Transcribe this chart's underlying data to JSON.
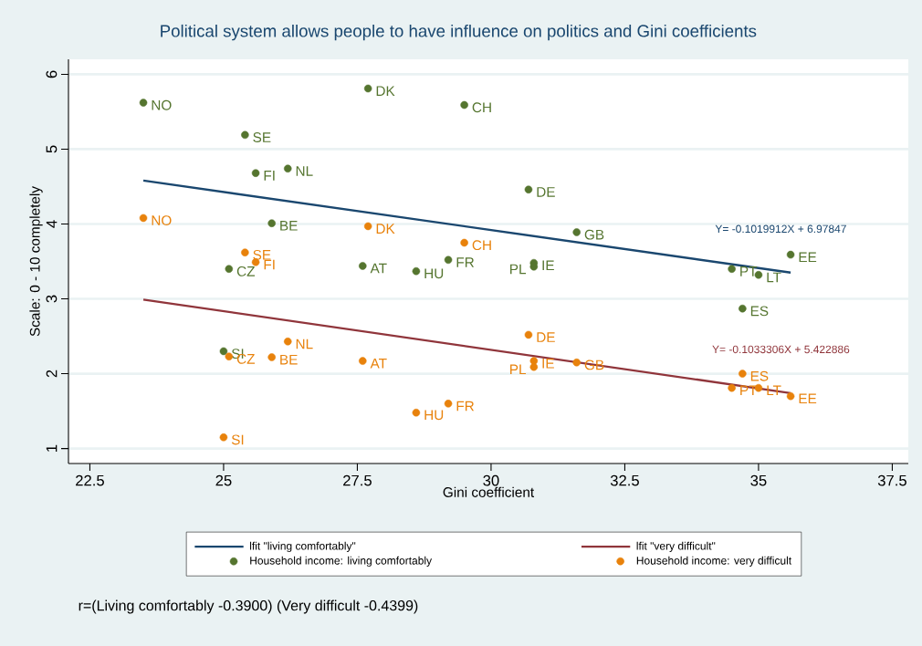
{
  "chart_data": {
    "type": "scatter",
    "title": "Political system allows people to have influence on politics and Gini coefficients",
    "xlabel": "Gini coefficient",
    "ylabel": "Scale: 0 - 10 completely",
    "xlim": [
      22.1,
      37.8
    ],
    "ylim": [
      0.8,
      6.2
    ],
    "xticks": [
      22.5,
      25,
      27.5,
      30,
      32.5,
      35,
      37.5
    ],
    "yticks": [
      1,
      2,
      3,
      4,
      5,
      6
    ],
    "grid": "y",
    "legend": "bottom",
    "series": [
      {
        "name": "lfit \"living comfortably\"",
        "type": "line",
        "marker": "none",
        "color": "#1a476f",
        "x": [
          23.5,
          35.6
        ],
        "values": [
          4.58,
          3.35
        ]
      },
      {
        "name": "lfit \"very difficult\"",
        "type": "line",
        "marker": "none",
        "color": "#90353b",
        "x": [
          23.5,
          35.6
        ],
        "values": [
          2.99,
          1.74
        ]
      },
      {
        "name": "Household income: living comfortably",
        "marker": "circle",
        "color": "#55752f",
        "x": [
          23.5,
          27.7,
          29.5,
          25.4,
          25.6,
          26.2,
          30.7,
          25.9,
          31.6,
          25.1,
          27.6,
          28.6,
          29.2,
          30.8,
          30.8,
          34.5,
          35.0,
          35.6,
          34.7,
          25.0
        ],
        "values": [
          5.62,
          5.81,
          5.59,
          5.19,
          4.68,
          4.74,
          4.46,
          4.01,
          3.89,
          3.4,
          3.44,
          3.37,
          3.52,
          3.48,
          3.43,
          3.4,
          3.32,
          3.59,
          2.87,
          2.3
        ],
        "value_labels": [
          "NO",
          "DK",
          "CH",
          "SE",
          "FI",
          "NL",
          "DE",
          "BE",
          "GB",
          "CZ",
          "AT",
          "HU",
          "FR",
          "IE",
          "PL",
          "PT",
          "LT",
          "EE",
          "ES",
          "SI"
        ]
      },
      {
        "name": "Household income: very difficult",
        "marker": "circle",
        "color": "#e8820c",
        "x": [
          23.5,
          27.7,
          25.4,
          25.6,
          29.5,
          30.7,
          30.8,
          30.8,
          31.6,
          26.2,
          25.1,
          25.9,
          27.6,
          28.6,
          29.2,
          25.0,
          34.7,
          34.5,
          35.0,
          35.6
        ],
        "values": [
          4.08,
          3.97,
          3.62,
          3.49,
          3.75,
          2.52,
          2.17,
          2.09,
          2.15,
          2.43,
          2.23,
          2.22,
          2.17,
          1.48,
          1.6,
          1.15,
          2.0,
          1.81,
          1.81,
          1.7
        ],
        "value_labels": [
          "NO",
          "DK",
          "SE",
          "FI",
          "CH",
          "DE",
          "IE",
          "PL",
          "GB",
          "NL",
          "CZ",
          "BE",
          "AT",
          "HU",
          "FR",
          "SI",
          "ES",
          "PT",
          "LT",
          "EE"
        ]
      }
    ],
    "annotations": [
      "Y= -0.1019912X + 6.97847",
      "Y= -0.1033306X + 5.422886",
      "r=(Living comfortably -0.3900) (Very difficult -0.4399)"
    ]
  }
}
